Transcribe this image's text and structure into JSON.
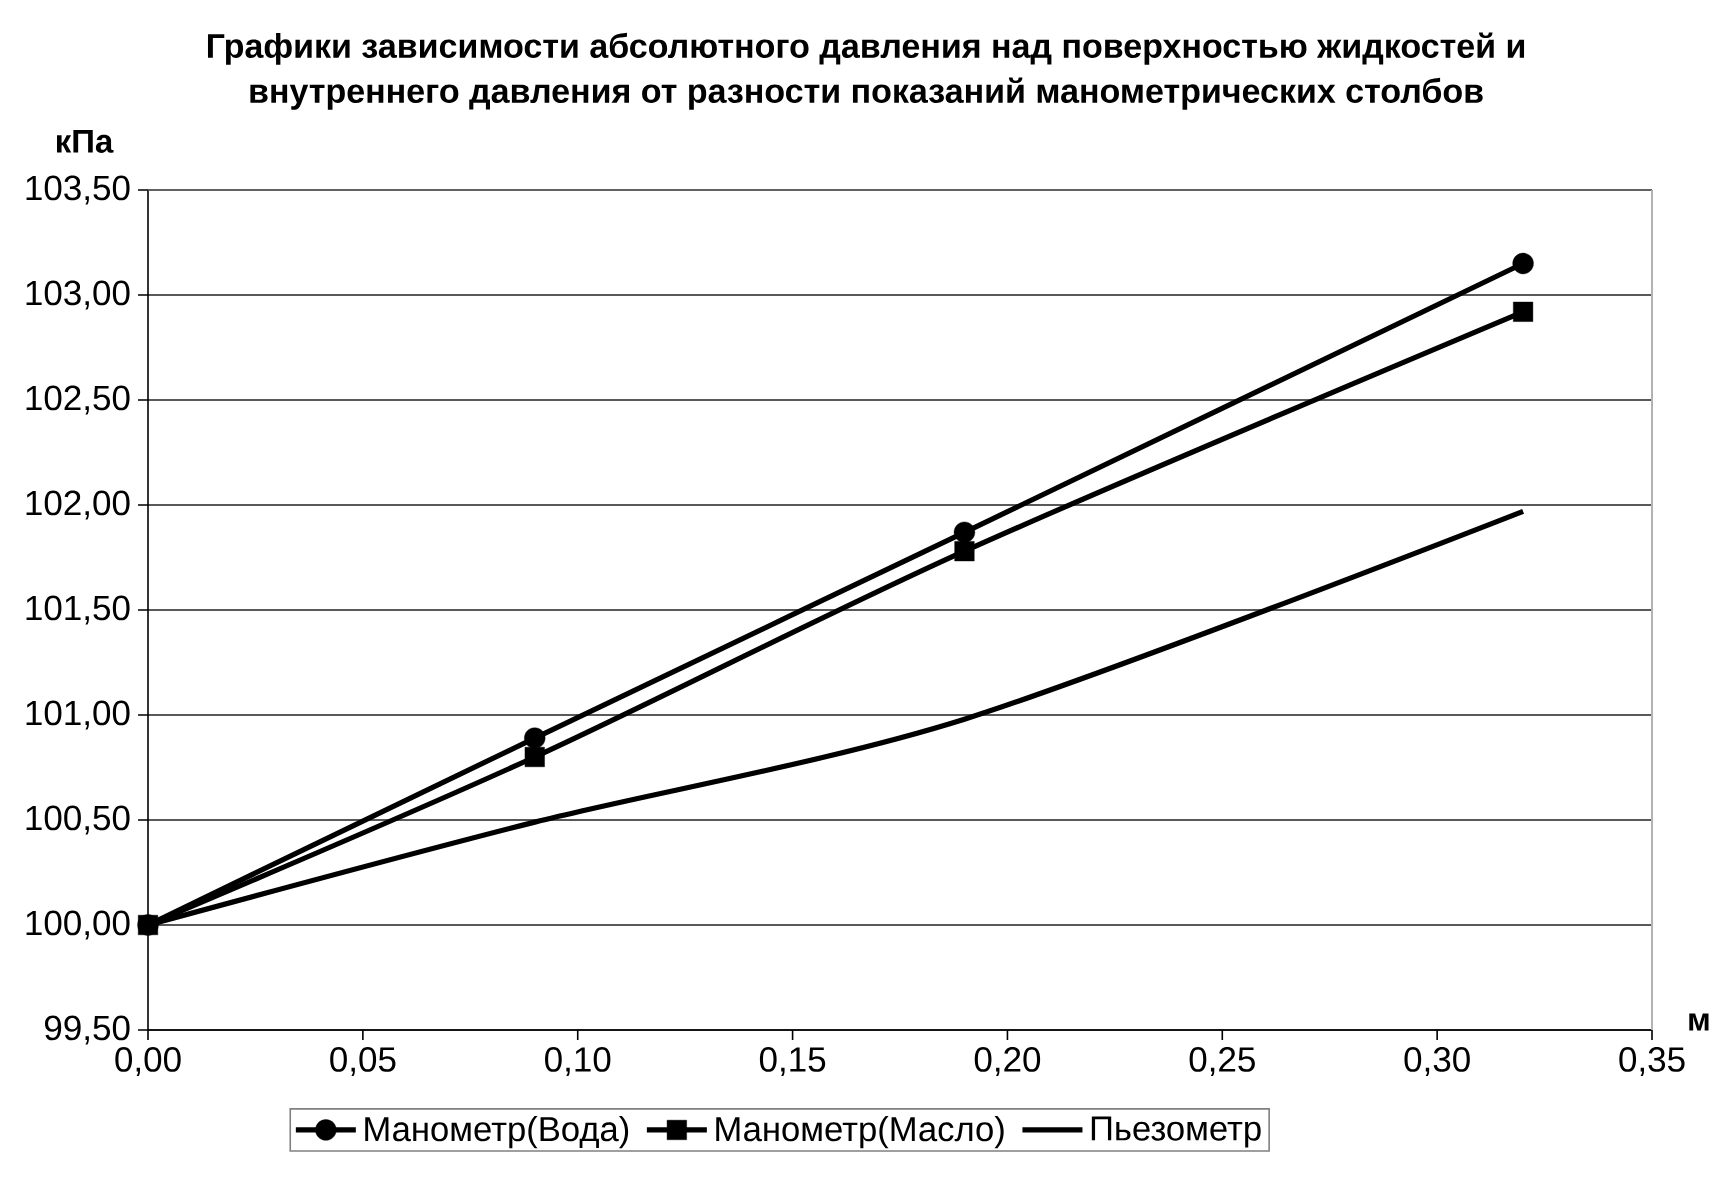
{
  "chart_data": {
    "type": "line",
    "title": "Графики зависимости абсолютного давления над поверхностью жидкостей и внутреннего давления от разности показаний манометрических столбов",
    "xlabel": "м",
    "ylabel": "кПа",
    "x": [
      0,
      0.09,
      0.19,
      0.32
    ],
    "series": [
      {
        "name": "Манометр(Вода)",
        "color": "#000000",
        "marker": "circle",
        "values": [
          100.0,
          100.89,
          101.87,
          103.15
        ]
      },
      {
        "name": "Манометр(Масло)",
        "color": "#000000",
        "marker": "square",
        "values": [
          100.0,
          100.8,
          101.78,
          102.92
        ]
      },
      {
        "name": "Пьезометр",
        "color": "#000000",
        "marker": "none",
        "values": [
          100.0,
          100.49,
          100.98,
          101.97
        ]
      }
    ],
    "xlim": [
      0,
      0.35
    ],
    "xticks": [
      {
        "value": 0,
        "label": "0,00"
      },
      {
        "value": 0.05,
        "label": "0,05"
      },
      {
        "value": 0.1,
        "label": "0,10"
      },
      {
        "value": 0.15,
        "label": "0,15"
      },
      {
        "value": 0.2,
        "label": "0,20"
      },
      {
        "value": 0.25,
        "label": "0,25"
      },
      {
        "value": 0.3,
        "label": "0,30"
      },
      {
        "value": 0.35,
        "label": "0,35"
      }
    ],
    "ylim": [
      99.5,
      103.5
    ],
    "yticks": [
      {
        "value": 99.5,
        "label": "99,50"
      },
      {
        "value": 100,
        "label": "100,00"
      },
      {
        "value": 100.5,
        "label": "100,50"
      },
      {
        "value": 101,
        "label": "101,00"
      },
      {
        "value": 101.5,
        "label": "101,50"
      },
      {
        "value": 102,
        "label": "102,00"
      },
      {
        "value": 102.5,
        "label": "102,50"
      },
      {
        "value": 103,
        "label": "103,00"
      },
      {
        "value": 103.5,
        "label": "103,50"
      }
    ],
    "grid": "y",
    "legend": "bottom",
    "line_style": "solid"
  }
}
